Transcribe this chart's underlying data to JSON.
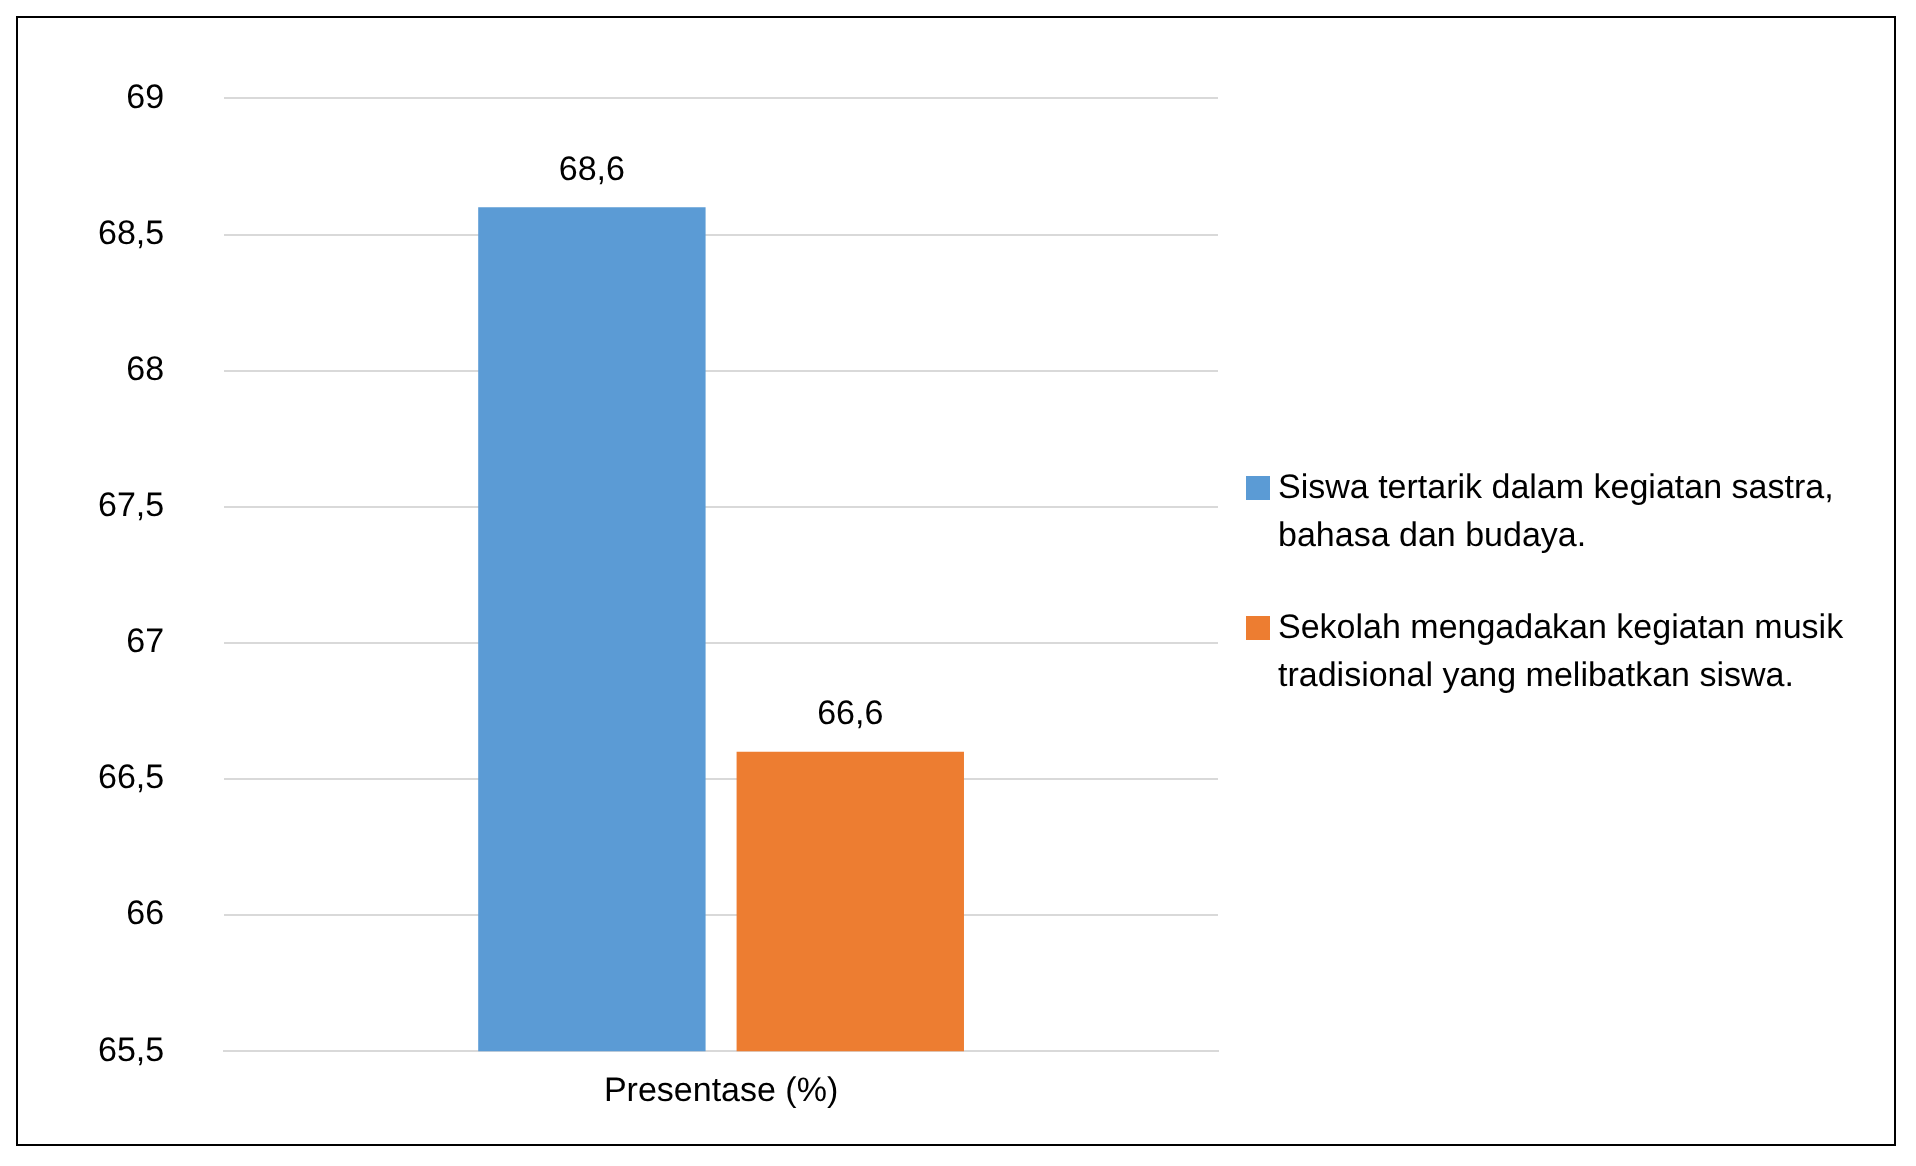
{
  "chart_data": {
    "type": "bar",
    "categories": [
      "Presentase (%)"
    ],
    "series": [
      {
        "name": "Siswa tertarik dalam kegiatan sastra, bahasa dan budaya.",
        "color": "#5b9bd5",
        "values": [
          68.6
        ],
        "value_labels": [
          "68,6"
        ]
      },
      {
        "name": "Sekolah mengadakan kegiatan musik tradisional yang melibatkan siswa.",
        "color": "#ed7d31",
        "values": [
          66.6
        ],
        "value_labels": [
          "66,6"
        ]
      }
    ],
    "ylim": [
      65.5,
      69
    ],
    "yticks": [
      {
        "value": 65.5,
        "label": "65,5"
      },
      66,
      {
        "value": 66.5,
        "label": "66,5"
      },
      67,
      {
        "value": 67.5,
        "label": "67,5"
      },
      68,
      {
        "value": 68.5,
        "label": "68,5"
      },
      69
    ],
    "grid": "y",
    "legend": "right"
  }
}
